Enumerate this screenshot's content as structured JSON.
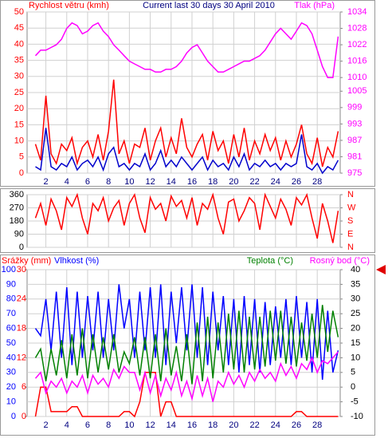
{
  "chart_data": [
    {
      "type": "line",
      "title": "Current last 30 days 30 April 2010",
      "x": [
        1,
        1.5,
        2,
        2.5,
        3,
        3.5,
        4,
        4.5,
        5,
        5.5,
        6,
        6.5,
        7,
        7.5,
        8,
        8.5,
        9,
        9.5,
        10,
        10.5,
        11,
        11.5,
        12,
        12.5,
        13,
        13.5,
        14,
        14.5,
        15,
        15.5,
        16,
        16.5,
        17,
        17.5,
        18,
        18.5,
        19,
        19.5,
        20,
        20.5,
        21,
        21.5,
        22,
        22.5,
        23,
        23.5,
        24,
        24.5,
        25,
        25.5,
        26,
        26.5,
        27,
        27.5,
        28,
        28.5,
        29,
        29.5,
        30
      ],
      "xlim": [
        0.2,
        30.2
      ],
      "xticks": [
        2,
        4,
        6,
        8,
        10,
        12,
        14,
        16,
        18,
        20,
        22,
        24,
        26,
        28
      ],
      "ylim": [
        0,
        50
      ],
      "yticks": [
        0,
        5,
        10,
        15,
        20,
        25,
        30,
        35,
        40,
        45,
        50
      ],
      "y2lim": [
        975,
        1034
      ],
      "y2ticks": [
        975,
        981,
        987,
        993,
        999,
        1005,
        1010,
        1016,
        1022,
        1028,
        1034
      ],
      "grid": true,
      "series": [
        {
          "name": "Rychlost větru (kmh)",
          "color": "#ff0000",
          "values": [
            9,
            4,
            24,
            6,
            3,
            9,
            7,
            11,
            3,
            8,
            10,
            5,
            12,
            4,
            13,
            29,
            6,
            10,
            3,
            9,
            8,
            14,
            4,
            10,
            14,
            5,
            11,
            6,
            17,
            8,
            5,
            9,
            12,
            4,
            13,
            7,
            10,
            3,
            12,
            5,
            14,
            4,
            10,
            6,
            12,
            7,
            11,
            4,
            10,
            5,
            9,
            15,
            6,
            3,
            11,
            2,
            8,
            5,
            13
          ]
        },
        {
          "color": "#0000cc",
          "values": [
            2,
            1,
            14,
            2,
            1,
            3,
            2,
            5,
            1,
            3,
            4,
            2,
            5,
            1,
            6,
            8,
            2,
            3,
            1,
            3,
            2,
            6,
            1,
            3,
            7,
            2,
            4,
            2,
            5,
            3,
            1,
            3,
            5,
            1,
            4,
            2,
            3,
            1,
            5,
            2,
            6,
            1,
            3,
            2,
            4,
            2,
            3,
            1,
            3,
            2,
            3,
            12,
            2,
            1,
            3,
            0,
            2,
            1,
            4
          ]
        },
        {
          "name": "Tlak (hPa)",
          "color": "#ff00ff",
          "axis": "y2",
          "values": [
            1018,
            1020,
            1020,
            1021,
            1022,
            1024,
            1028,
            1030,
            1029,
            1026,
            1027,
            1029,
            1030,
            1027,
            1025,
            1022,
            1020,
            1018,
            1016,
            1015,
            1014,
            1013,
            1013,
            1012,
            1012,
            1013,
            1013,
            1014,
            1016,
            1019,
            1021,
            1022,
            1019,
            1016,
            1014,
            1012,
            1012,
            1013,
            1014,
            1015,
            1016,
            1016,
            1017,
            1018,
            1020,
            1023,
            1026,
            1028,
            1026,
            1024,
            1027,
            1030,
            1029,
            1026,
            1020,
            1014,
            1010,
            1010,
            1025
          ]
        }
      ]
    },
    {
      "type": "line",
      "x": [
        1,
        1.5,
        2,
        2.5,
        3,
        3.5,
        4,
        4.5,
        5,
        5.5,
        6,
        6.5,
        7,
        7.5,
        8,
        8.5,
        9,
        9.5,
        10,
        10.5,
        11,
        11.5,
        12,
        12.5,
        13,
        13.5,
        14,
        14.5,
        15,
        15.5,
        16,
        16.5,
        17,
        17.5,
        18,
        18.5,
        19,
        19.5,
        20,
        20.5,
        21,
        21.5,
        22,
        22.5,
        23,
        23.5,
        24,
        24.5,
        25,
        25.5,
        26,
        26.5,
        27,
        27.5,
        28,
        28.5,
        29,
        29.5,
        30
      ],
      "xlim": [
        0.2,
        30.2
      ],
      "xticks": [
        2,
        4,
        6,
        8,
        10,
        12,
        14,
        16,
        18,
        20,
        22,
        24,
        26,
        28
      ],
      "ylim": [
        0,
        360
      ],
      "yticks": [
        0,
        90,
        180,
        270,
        360
      ],
      "y2lim": [
        0,
        360
      ],
      "y2ticks": [
        {
          "value": 360,
          "label": "N"
        },
        {
          "value": 270,
          "label": "W"
        },
        {
          "value": 180,
          "label": "S"
        },
        {
          "value": 90,
          "label": "E"
        },
        {
          "value": 0,
          "label": "N"
        }
      ],
      "grid": true,
      "series": [
        {
          "color": "#ff0000",
          "values": [
            200,
            300,
            150,
            330,
            250,
            120,
            340,
            280,
            360,
            200,
            90,
            300,
            250,
            340,
            180,
            270,
            320,
            150,
            300,
            360,
            200,
            100,
            340,
            260,
            300,
            180,
            350,
            280,
            320,
            200,
            340,
            150,
            300,
            260,
            360,
            200,
            90,
            310,
            330,
            180,
            250,
            340,
            300,
            120,
            360,
            280,
            200,
            330,
            260,
            150,
            340,
            290,
            360,
            200,
            60,
            300,
            180,
            30,
            250
          ]
        }
      ]
    },
    {
      "type": "line",
      "x": [
        1,
        1.5,
        2,
        2.5,
        3,
        3.5,
        4,
        4.5,
        5,
        5.5,
        6,
        6.5,
        7,
        7.5,
        8,
        8.5,
        9,
        9.5,
        10,
        10.5,
        11,
        11.5,
        12,
        12.5,
        13,
        13.5,
        14,
        14.5,
        15,
        15.5,
        16,
        16.5,
        17,
        17.5,
        18,
        18.5,
        19,
        19.5,
        20,
        20.5,
        21,
        21.5,
        22,
        22.5,
        23,
        23.5,
        24,
        24.5,
        25,
        25.5,
        26,
        26.5,
        27,
        27.5,
        28,
        28.5,
        29,
        29.5,
        30
      ],
      "xlim": [
        0.2,
        30.2
      ],
      "xticks": [
        2,
        4,
        6,
        8,
        10,
        12,
        14,
        16,
        18,
        20,
        22,
        24,
        26,
        28
      ],
      "ylim": [
        0,
        100
      ],
      "yticks": [
        0,
        10,
        20,
        30,
        40,
        50,
        60,
        70,
        80,
        90,
        100
      ],
      "y2lim": [
        -10,
        40
      ],
      "y2ticks": [
        -10,
        -5,
        0,
        5,
        10,
        15,
        20,
        25,
        30,
        35,
        40
      ],
      "y3lim": [
        0,
        30
      ],
      "y3ticks": [
        0,
        6,
        12,
        18,
        24,
        30
      ],
      "grid": true,
      "series": [
        {
          "name": "Srážky (mm)",
          "color": "#ff0000",
          "axis": "y3",
          "values": [
            0,
            6,
            6,
            1,
            1,
            1,
            1,
            2,
            2,
            0,
            0,
            0,
            0,
            0,
            0,
            0,
            0,
            1,
            1,
            0,
            3,
            9,
            9,
            9,
            0,
            3,
            3,
            0,
            0,
            0,
            0,
            0,
            0,
            0,
            0,
            0,
            0,
            0,
            0,
            0,
            0,
            0,
            0,
            0,
            0,
            0,
            0,
            0,
            0,
            0,
            1,
            1,
            0,
            0,
            0,
            0,
            0,
            0,
            0
          ]
        },
        {
          "name": "Vlhkost (%)",
          "color": "#0000ff",
          "values": [
            60,
            55,
            80,
            45,
            85,
            40,
            88,
            35,
            85,
            40,
            82,
            45,
            85,
            40,
            80,
            45,
            90,
            60,
            80,
            40,
            85,
            45,
            88,
            40,
            90,
            35,
            85,
            50,
            88,
            45,
            90,
            40,
            88,
            35,
            85,
            45,
            82,
            35,
            80,
            30,
            82,
            35,
            80,
            30,
            78,
            35,
            75,
            40,
            80,
            35,
            82,
            40,
            78,
            30,
            80,
            25,
            72,
            30,
            45
          ]
        },
        {
          "name": "Teplota (°C)",
          "color": "#008000",
          "axis": "y2",
          "values": [
            10,
            13,
            2,
            13,
            4,
            16,
            3,
            18,
            4,
            20,
            3,
            18,
            5,
            17,
            6,
            18,
            5,
            12,
            8,
            17,
            4,
            17,
            3,
            18,
            2,
            20,
            4,
            14,
            2,
            18,
            1,
            22,
            2,
            24,
            3,
            22,
            5,
            25,
            6,
            26,
            5,
            24,
            6,
            24,
            7,
            26,
            9,
            26,
            8,
            24,
            7,
            22,
            9,
            25,
            10,
            28,
            12,
            26,
            17
          ]
        },
        {
          "name": "Rosný bod (°C)",
          "color": "#ff00ff",
          "axis": "y2",
          "values": [
            3,
            5,
            -2,
            2,
            0,
            3,
            -2,
            2,
            0,
            4,
            -2,
            4,
            1,
            3,
            0,
            6,
            3,
            7,
            5,
            5,
            -1,
            5,
            -2,
            4,
            -3,
            3,
            -1,
            5,
            -3,
            2,
            -4,
            4,
            -3,
            3,
            -5,
            2,
            0,
            5,
            1,
            4,
            0,
            5,
            2,
            6,
            3,
            5,
            2,
            8,
            4,
            7,
            3,
            8,
            6,
            10,
            5,
            9,
            8,
            10,
            12
          ]
        }
      ]
    }
  ]
}
